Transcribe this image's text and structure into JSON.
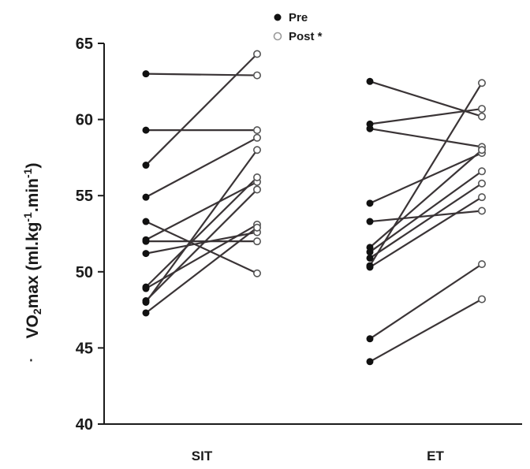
{
  "chart_data": {
    "type": "line",
    "ylabel": {
      "dot": "˙",
      "v": "V",
      "o": "O",
      "sub": "2",
      "max": "max",
      "units_open": " (ml.kg",
      "sup1": "-1",
      "units_mid": ".min",
      "sup2": "-1",
      "units_close": ")"
    },
    "ylim": [
      40,
      65
    ],
    "yticks": [
      "40",
      "45",
      "50",
      "55",
      "60",
      "65"
    ],
    "categories": [
      "SIT",
      "ET"
    ],
    "legend": [
      {
        "name": "Pre",
        "marker": "filled"
      },
      {
        "name": "Post *",
        "marker": "open"
      }
    ],
    "groups": [
      {
        "name": "SIT",
        "pairs": [
          {
            "pre": 63.0,
            "post": 62.9
          },
          {
            "pre": 59.3,
            "post": 59.3
          },
          {
            "pre": 57.0,
            "post": 64.3
          },
          {
            "pre": 54.9,
            "post": 58.8
          },
          {
            "pre": 53.3,
            "post": 49.9
          },
          {
            "pre": 52.1,
            "post": 55.9
          },
          {
            "pre": 52.0,
            "post": 52.0
          },
          {
            "pre": 51.2,
            "post": 52.6
          },
          {
            "pre": 49.0,
            "post": 56.2
          },
          {
            "pre": 48.9,
            "post": 53.1
          },
          {
            "pre": 48.1,
            "post": 55.4
          },
          {
            "pre": 48.0,
            "post": 58.0
          },
          {
            "pre": 47.3,
            "post": 52.9
          }
        ]
      },
      {
        "name": "ET",
        "pairs": [
          {
            "pre": 62.5,
            "post": 60.2
          },
          {
            "pre": 59.7,
            "post": 60.7
          },
          {
            "pre": 59.4,
            "post": 58.2
          },
          {
            "pre": 54.5,
            "post": 57.8
          },
          {
            "pre": 53.3,
            "post": 54.0
          },
          {
            "pre": 51.6,
            "post": 58.0
          },
          {
            "pre": 51.3,
            "post": 56.6
          },
          {
            "pre": 50.9,
            "post": 55.8
          },
          {
            "pre": 50.4,
            "post": 62.4
          },
          {
            "pre": 50.3,
            "post": 54.9
          },
          {
            "pre": 45.6,
            "post": 50.5
          },
          {
            "pre": 44.1,
            "post": 48.2
          }
        ]
      }
    ],
    "colors": {
      "line": "#3a3436",
      "marker_filled": "#111111",
      "marker_open_fill": "#ffffff",
      "marker_open_stroke": "#555555",
      "axis": "#1a1a1a"
    }
  }
}
